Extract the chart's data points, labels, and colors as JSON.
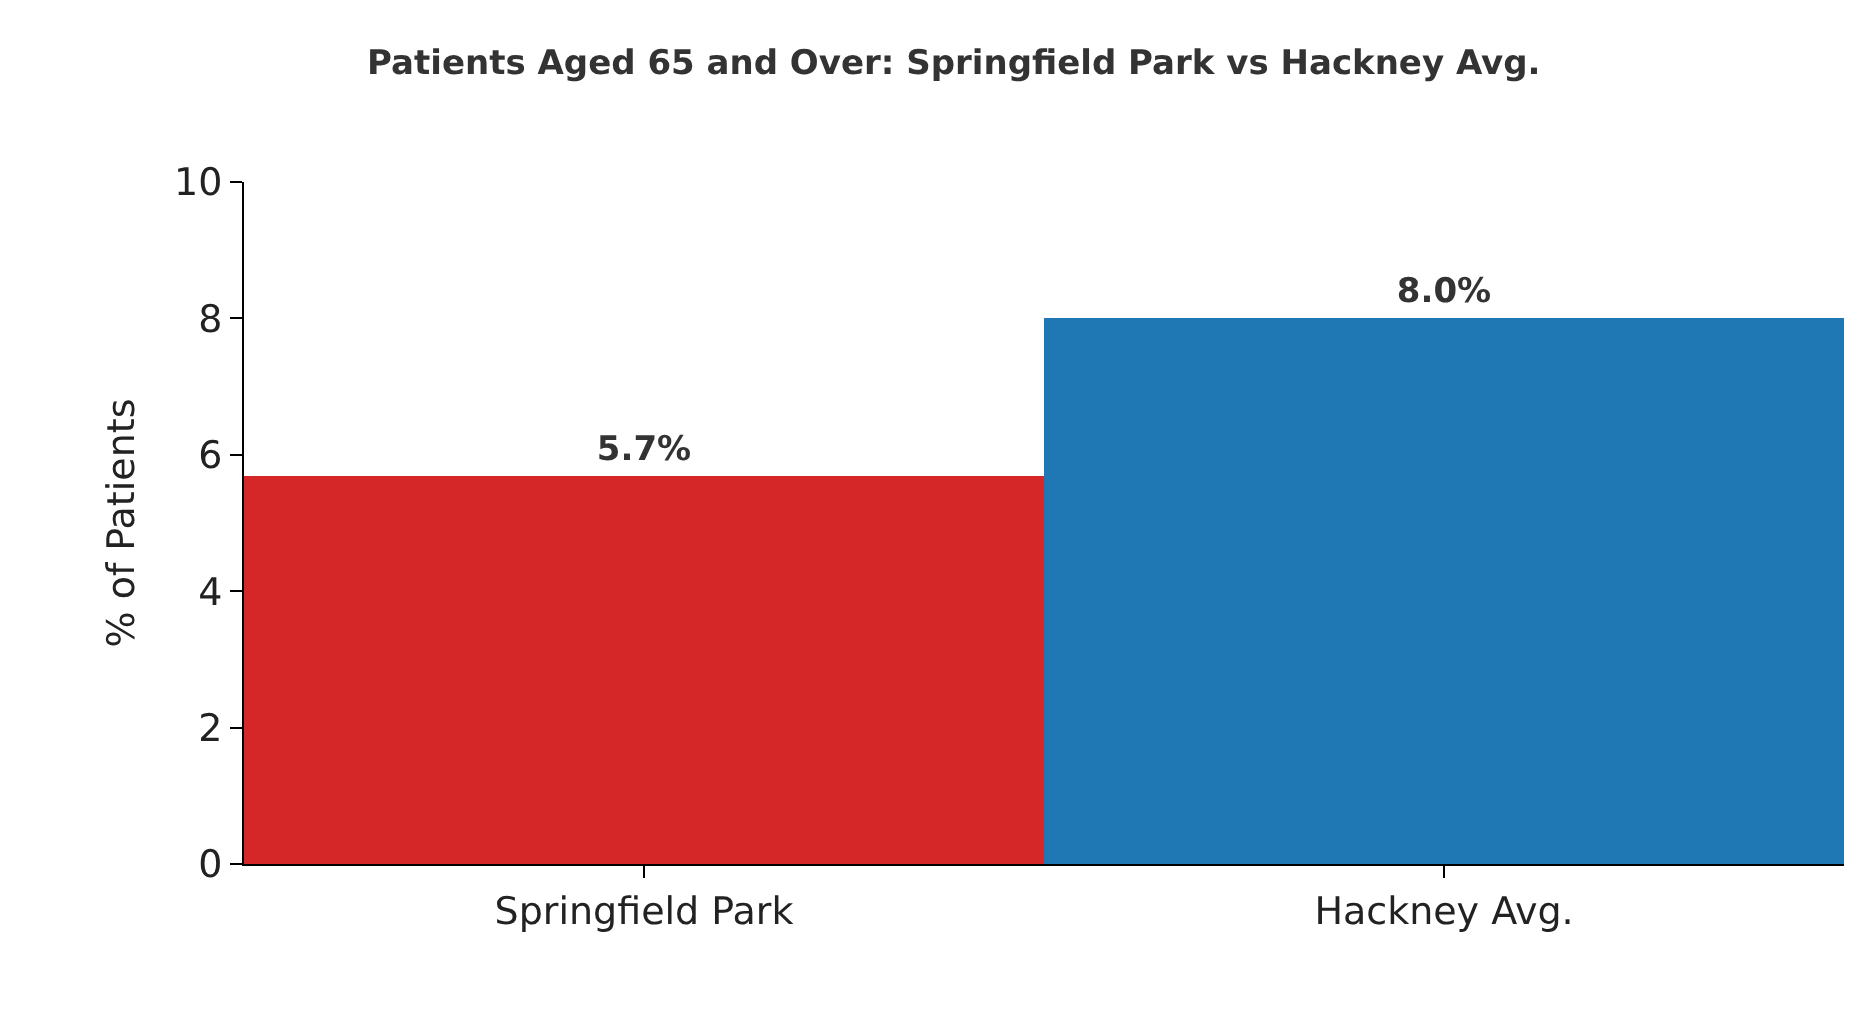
{
  "chart_data": {
    "type": "bar",
    "title": "Patients Aged 65 and Over: Springfield Park vs Hackney Avg.",
    "ylabel": "% of Patients",
    "categories": [
      "Springfield Park",
      "Hackney Avg."
    ],
    "values": [
      5.7,
      8.0
    ],
    "colors": [
      "#d62728",
      "#1f77b4"
    ],
    "value_labels": [
      "5.7%",
      "8.0%"
    ],
    "ylim": [
      0,
      10
    ],
    "yticks": [
      0,
      2,
      4,
      6,
      8,
      10
    ],
    "grid": false
  }
}
